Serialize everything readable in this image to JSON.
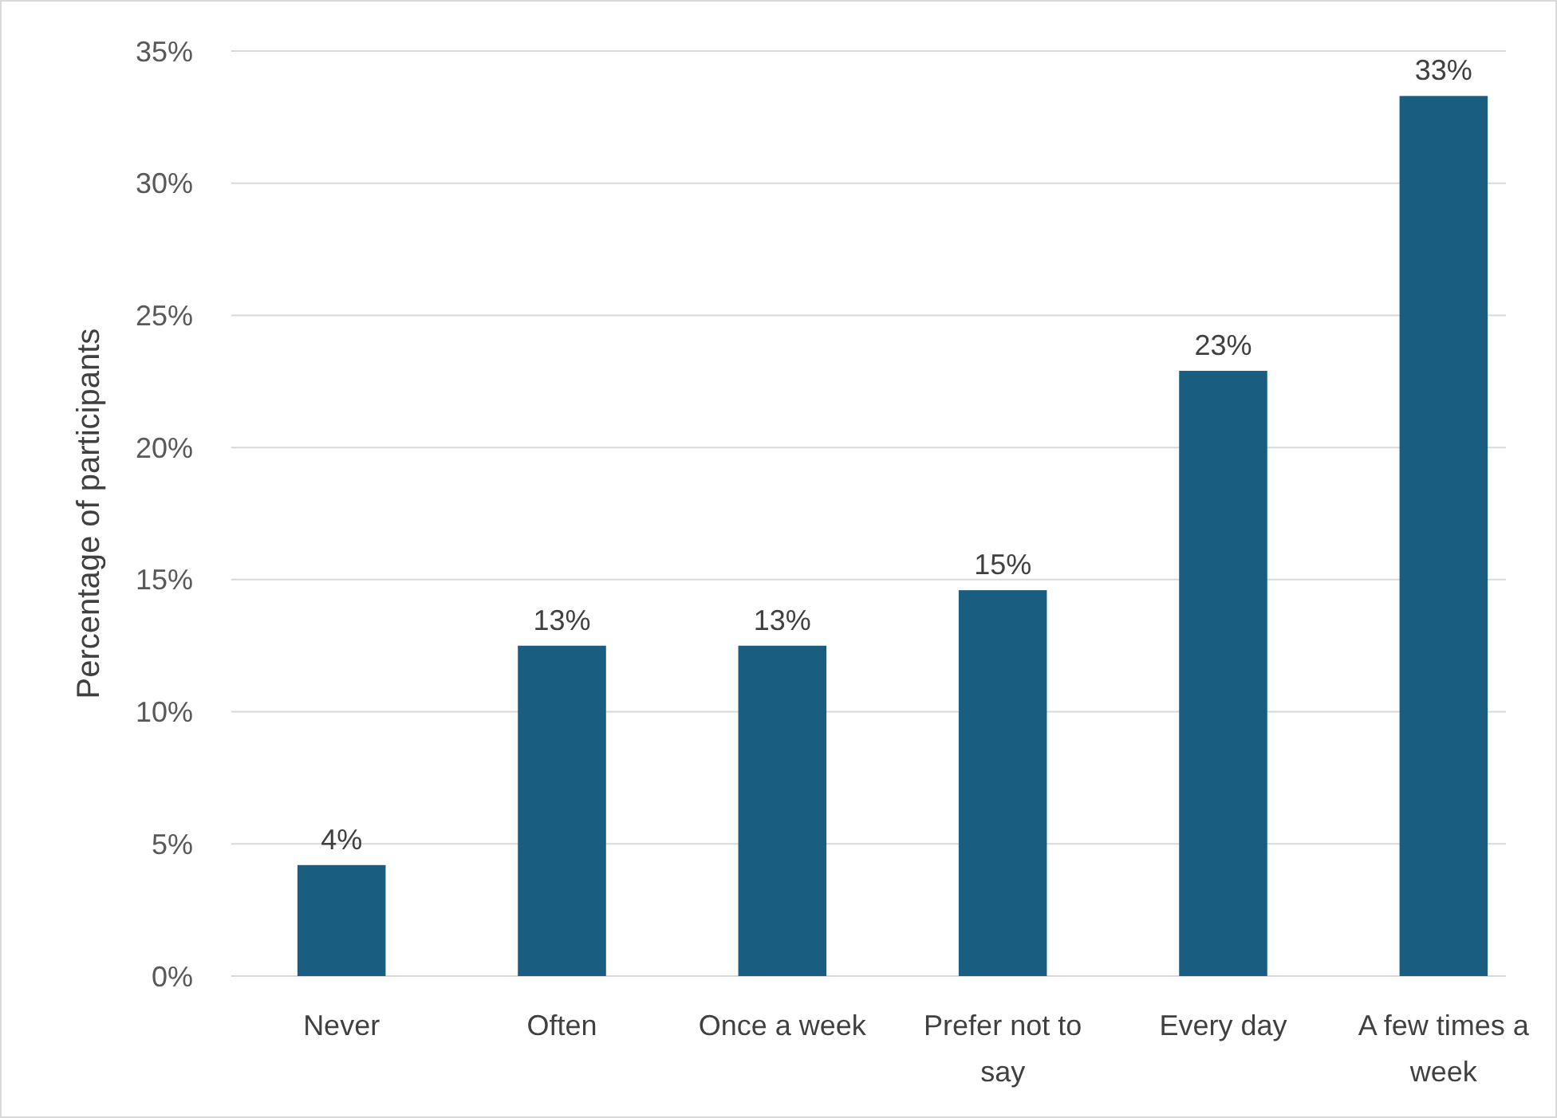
{
  "chart_data": {
    "type": "bar",
    "ylabel": "Percentage of participants",
    "categories": [
      "Never",
      "Often",
      "Once a week",
      "Prefer not to say",
      "Every day",
      "A few times a week"
    ],
    "values": [
      4.2,
      12.5,
      12.5,
      14.6,
      22.9,
      33.3
    ],
    "value_labels": [
      "4%",
      "13%",
      "13%",
      "15%",
      "23%",
      "33%"
    ],
    "color": "#195e80",
    "ylim": [
      0,
      35
    ],
    "yticks": [
      {
        "value": 0,
        "label": "0%"
      },
      {
        "value": 5,
        "label": "5%"
      },
      {
        "value": 10,
        "label": "10%"
      },
      {
        "value": 15,
        "label": "15%"
      },
      {
        "value": 20,
        "label": "20%"
      },
      {
        "value": 25,
        "label": "25%"
      },
      {
        "value": 30,
        "label": "30%"
      },
      {
        "value": 35,
        "label": "35%"
      }
    ],
    "grid": "y"
  }
}
